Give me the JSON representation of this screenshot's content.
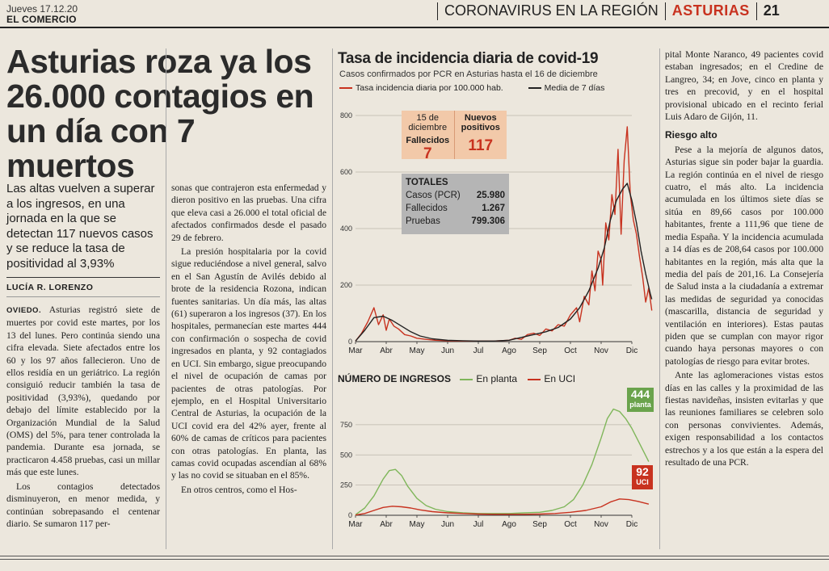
{
  "masthead": {
    "date": "Jueves 17.12.20",
    "paper": "EL COMERCIO",
    "section": "CORONAVIRUS EN LA REGIÓN",
    "region": "ASTURIAS",
    "page": "21"
  },
  "article": {
    "headline_line1": "Asturias roza ya los",
    "headline_line2": "26.000 contagios en",
    "headline_line3": "un día con 7 muertos",
    "subhead": "Las altas vuelven a superar a los ingresos, en una jornada en la que se detectan 117 nuevos casos y se reduce la tasa de positividad al 3,93%",
    "byline": "LUCÍA R. LORENZO",
    "dateline": "OVIEDO.",
    "col1_p1": "Asturias registró siete de muertes por covid este martes, por los 13 del lunes. Pero continúa siendo una cifra elevada. Siete afectados entre los 60 y los 97 años fallecieron. Uno de ellos residía en un geriátrico. La región consiguió reducir también la tasa de positividad (3,93%), quedando por debajo del límite establecido por la Organización Mundial de la Salud (OMS) del 5%, para tener controlada la pandemia. Durante esa jornada, se practicaron 4.458 pruebas, casi un millar más que este lunes.",
    "col1_p2": "Los contagios detectados disminuyeron, en menor medida, y continúan sobrepasando el centenar diario. Se sumaron 117 per-",
    "col2_p0": "sonas que contrajeron esta enfermedad y dieron positivo en las pruebas. Una cifra que eleva casi a 26.000 el total oficial de afectados confirmados desde el pasado 29 de febrero.",
    "col2_p1": "La presión hospitalaria por la covid sigue reduciéndose a nivel general, salvo en el San Agustín de Avilés debido al brote de la residencia Rozona, indican fuentes sanitarias. Un día más, las altas (61) superaron a los ingresos (37). En los hospitales, permanecían este martes 444 con confirmación o sospecha de covid ingresados en planta, y 92 contagiados en UCI. Sin embargo, sigue preocupando el nivel de ocupación de camas por pacientes de otras patologías. Por ejemplo, en el Hospital Universitario Central de Asturias, la ocupación de la UCI covid era del 42% ayer, frente al 60% de camas de críticos para pacientes con otras patologías. En planta, las camas covid ocupadas ascendían al 68% y las no covid se situaban en el 85%.",
    "col2_p2": "En otros centros, como el Hos-",
    "col3_p0": "pital Monte Naranco, 49 pacientes covid estaban ingresados; en el Credine de Langreo, 34; en Jove, cinco en planta y tres en precovid, y en el hospital provisional ubicado en el recinto ferial Luis Adaro de Gijón, 11.",
    "col3_subtitle": "Riesgo alto",
    "col3_p1": "Pese a la mejoría de algunos datos, Asturias sigue sin poder bajar la guardia. La región continúa en el nivel de riesgo cuatro, el más alto. La incidencia acumulada en los últimos siete días se sitúa en 89,66 casos por 100.000 habitantes, frente a 111,96 que tiene de media España. Y la incidencia acumulada a 14 días es de 208,64 casos por 100.000 habitantes en la región, más alta que la media del país de 201,16. La Consejería de Salud insta a la ciudadanía a extremar las medidas de seguridad ya conocidas (mascarilla, distancia de seguridad y ventilación en interiores). Estas pautas piden que se cumplan con mayor rigor cuando haya personas mayores o con patologías de riesgo para evitar brotes.",
    "col3_p2": "Ante las aglomeraciones vistas estos días en las calles y la proximidad de las fiestas navideñas, insisten evitarlas y que las reuniones familiares se celebren solo con personas convivientes. Además, exigen responsabilidad a los contactos estrechos y a los que están a la espera del resultado de una PCR."
  },
  "infographic": {
    "title": "Tasa de incidencia diaria de covid-19",
    "subtitle": "Casos confirmados por PCR en Asturias hasta el 16 de diciembre",
    "legend_daily": "Tasa incidencia diaria por 100.000 hab.",
    "legend_avg": "Media de 7 días",
    "box_date": "15 de diciembre",
    "box_deaths_label": "Fallecidos",
    "box_deaths_value": "7",
    "box_new_label": "Nuevos positivos",
    "box_new_value": "117",
    "totals_title": "TOTALES",
    "totals": [
      {
        "label": "Casos (PCR)",
        "value": "25.980"
      },
      {
        "label": "Fallecidos",
        "value": "1.267"
      },
      {
        "label": "Pruebas",
        "value": "799.306"
      }
    ],
    "chart2_title": "NÚMERO DE INGRESOS",
    "chart2_legend_planta": "En planta",
    "chart2_legend_uci": "En UCI",
    "tag_planta_value": "444",
    "tag_planta_label": "planta",
    "tag_uci_value": "92",
    "tag_uci_label": "UCI",
    "colors": {
      "red": "#c8321f",
      "black": "#222222",
      "green": "#7fb65a",
      "deaths_box": "#f2c9a9",
      "totals_box": "#b5b5b5"
    }
  },
  "chart_data": [
    {
      "type": "line",
      "title": "Tasa de incidencia diaria de covid-19",
      "subtitle": "Casos confirmados por PCR en Asturias hasta el 16 de diciembre",
      "x_ticks": [
        "Mar",
        "Abr",
        "May",
        "Jun",
        "Jul",
        "Ago",
        "Sep",
        "Oct",
        "Nov",
        "Dic"
      ],
      "y_ticks": [
        0,
        200,
        400,
        600,
        800
      ],
      "ylim": [
        0,
        800
      ],
      "grid": true,
      "legend": "top-left",
      "series": [
        {
          "name": "Tasa incidencia diaria por 100.000 hab.",
          "color": "#c8321f",
          "x": [
            0.0,
            0.2,
            0.4,
            0.6,
            0.75,
            0.9,
            1.0,
            1.1,
            1.25,
            1.4,
            1.6,
            1.8,
            2.0,
            2.3,
            2.6,
            3.0,
            3.5,
            4.0,
            4.5,
            5.0,
            5.2,
            5.4,
            5.6,
            5.8,
            6.0,
            6.2,
            6.4,
            6.6,
            6.8,
            7.0,
            7.2,
            7.3,
            7.45,
            7.6,
            7.7,
            7.8,
            7.9,
            8.0,
            8.05,
            8.15,
            8.25,
            8.35,
            8.45,
            8.55,
            8.65,
            8.75,
            8.85,
            8.95,
            9.05,
            9.15,
            9.25,
            9.35,
            9.45,
            9.55,
            9.65
          ],
          "values": [
            2,
            30,
            70,
            120,
            60,
            95,
            40,
            80,
            55,
            45,
            25,
            20,
            12,
            8,
            5,
            3,
            2,
            2,
            2,
            5,
            12,
            8,
            25,
            30,
            22,
            45,
            38,
            60,
            55,
            95,
            120,
            70,
            160,
            130,
            250,
            180,
            320,
            290,
            200,
            420,
            360,
            520,
            450,
            680,
            380,
            640,
            760,
            520,
            430,
            380,
            300,
            230,
            140,
            190,
            110
          ]
        },
        {
          "name": "Media de 7 días",
          "color": "#222222",
          "x": [
            0.0,
            0.3,
            0.6,
            0.9,
            1.2,
            1.5,
            1.8,
            2.1,
            2.5,
            3.0,
            3.5,
            4.0,
            4.5,
            5.0,
            5.4,
            5.8,
            6.2,
            6.6,
            7.0,
            7.3,
            7.6,
            7.9,
            8.1,
            8.3,
            8.5,
            8.7,
            8.85,
            9.0,
            9.15,
            9.3,
            9.45,
            9.6,
            9.65
          ],
          "values": [
            2,
            40,
            85,
            90,
            75,
            55,
            35,
            20,
            10,
            5,
            3,
            2,
            2,
            5,
            15,
            25,
            35,
            50,
            80,
            120,
            180,
            260,
            330,
            430,
            500,
            540,
            560,
            500,
            420,
            320,
            240,
            170,
            150
          ]
        }
      ]
    },
    {
      "type": "line",
      "title": "NÚMERO DE INGRESOS",
      "x_ticks": [
        "Mar",
        "Abr",
        "May",
        "Jun",
        "Jul",
        "Ago",
        "Sep",
        "Oct",
        "Nov",
        "Dic"
      ],
      "y_ticks": [
        0,
        250,
        500,
        750
      ],
      "ylim": [
        0,
        950
      ],
      "legend": "top",
      "series": [
        {
          "name": "En planta",
          "color": "#7fb65a",
          "x": [
            0.0,
            0.3,
            0.6,
            0.9,
            1.1,
            1.3,
            1.5,
            1.7,
            2.0,
            2.3,
            2.6,
            3.0,
            3.5,
            4.0,
            4.5,
            5.0,
            5.5,
            6.0,
            6.4,
            6.8,
            7.1,
            7.4,
            7.7,
            8.0,
            8.2,
            8.4,
            8.6,
            8.8,
            9.0,
            9.2,
            9.4,
            9.55
          ],
          "values": [
            5,
            60,
            160,
            300,
            370,
            380,
            330,
            240,
            140,
            80,
            50,
            30,
            20,
            15,
            15,
            15,
            20,
            25,
            40,
            70,
            130,
            250,
            420,
            640,
            800,
            880,
            860,
            800,
            720,
            620,
            520,
            444
          ]
        },
        {
          "name": "En UCI",
          "color": "#c8321f",
          "x": [
            0.0,
            0.3,
            0.6,
            0.9,
            1.2,
            1.5,
            1.8,
            2.1,
            2.5,
            3.0,
            3.5,
            4.0,
            4.5,
            5.0,
            5.5,
            6.0,
            6.5,
            7.0,
            7.5,
            8.0,
            8.3,
            8.6,
            8.9,
            9.2,
            9.55
          ],
          "values": [
            2,
            15,
            40,
            65,
            75,
            70,
            60,
            45,
            30,
            20,
            15,
            10,
            8,
            8,
            8,
            10,
            15,
            25,
            40,
            70,
            110,
            135,
            130,
            115,
            92
          ]
        }
      ]
    }
  ]
}
